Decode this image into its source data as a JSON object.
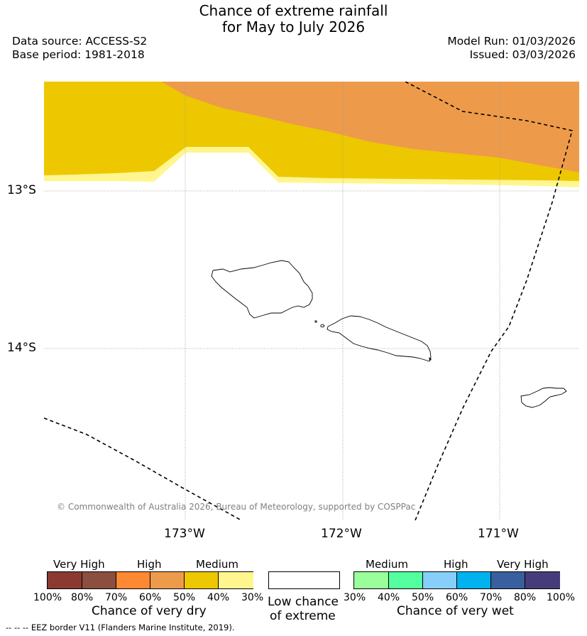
{
  "title": {
    "line1": "Chance of extreme rainfall",
    "line2": "for May to July 2026"
  },
  "meta": {
    "data_source": "Data source: ACCESS-S2",
    "base_period": "Base period: 1981-2018",
    "model_run": "Model Run: 01/03/2026",
    "issued": "Issued: 03/03/2026"
  },
  "map": {
    "lat_labels": [
      "13°S",
      "14°S"
    ],
    "lon_labels": [
      "173°W",
      "172°W",
      "171°W"
    ],
    "credit": "© Commonwealth of Australia 2026, Bureau of Meteorology, supported by COSPPac",
    "colors": {
      "very_high_dry": "#8b3a32",
      "high_dry_70": "#8b4e3f",
      "high_dry": "#ff8833",
      "high_dry_light": "#ed9b4a",
      "medium_dry": "#edc800",
      "medium_dry_light": "#fff68f",
      "low": "#ffffff"
    }
  },
  "legend": {
    "dry": {
      "categories": [
        "Very High",
        "High",
        "Medium"
      ],
      "ticks": [
        "100%",
        "80%",
        "70%",
        "60%",
        "50%",
        "40%",
        "30%"
      ],
      "colors": [
        "#8b3a32",
        "#8b4e3f",
        "#ff8833",
        "#ed9b4a",
        "#edc800",
        "#fff68f"
      ],
      "caption": "Chance of very dry"
    },
    "low": {
      "caption_line1": "Low chance",
      "caption_line2": "of extreme"
    },
    "wet": {
      "categories": [
        "Medium",
        "High",
        "Very High"
      ],
      "ticks": [
        "30%",
        "40%",
        "50%",
        "60%",
        "70%",
        "80%",
        "100%"
      ],
      "colors": [
        "#9aff9a",
        "#54ff9f",
        "#87cefa",
        "#00b2ee",
        "#3a5f9e",
        "#473c7b"
      ],
      "caption": "Chance of very wet"
    }
  },
  "footer": {
    "eez_note": "--  --  -- EEZ border V11 (Flanders Marine Institute, 2019)."
  }
}
